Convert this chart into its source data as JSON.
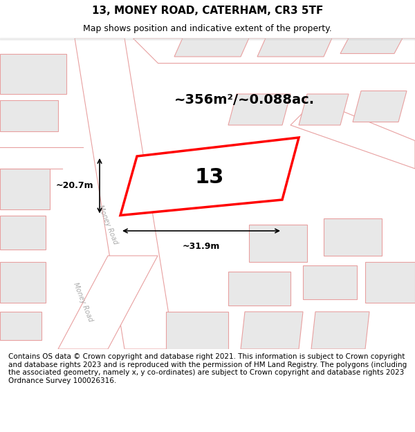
{
  "title": "13, MONEY ROAD, CATERHAM, CR3 5TF",
  "subtitle": "Map shows position and indicative extent of the property.",
  "footer": "Contains OS data © Crown copyright and database right 2021. This information is subject to Crown copyright and database rights 2023 and is reproduced with the permission of HM Land Registry. The polygons (including the associated geometry, namely x, y co-ordinates) are subject to Crown copyright and database rights 2023 Ordnance Survey 100026316.",
  "area_label": "~356m²/~0.088ac.",
  "number_label": "13",
  "width_label": "~31.9m",
  "height_label": "~20.7m",
  "map_bg": "#f0eeec",
  "plot_bg": "#ffffff",
  "road_color": "#ffffff",
  "building_color": "#e8e8e8",
  "boundary_color": "#e8a0a0",
  "highlight_color": "#ff0000",
  "road_label": "Money Road",
  "title_fontsize": 11,
  "subtitle_fontsize": 9,
  "footer_fontsize": 7.5
}
